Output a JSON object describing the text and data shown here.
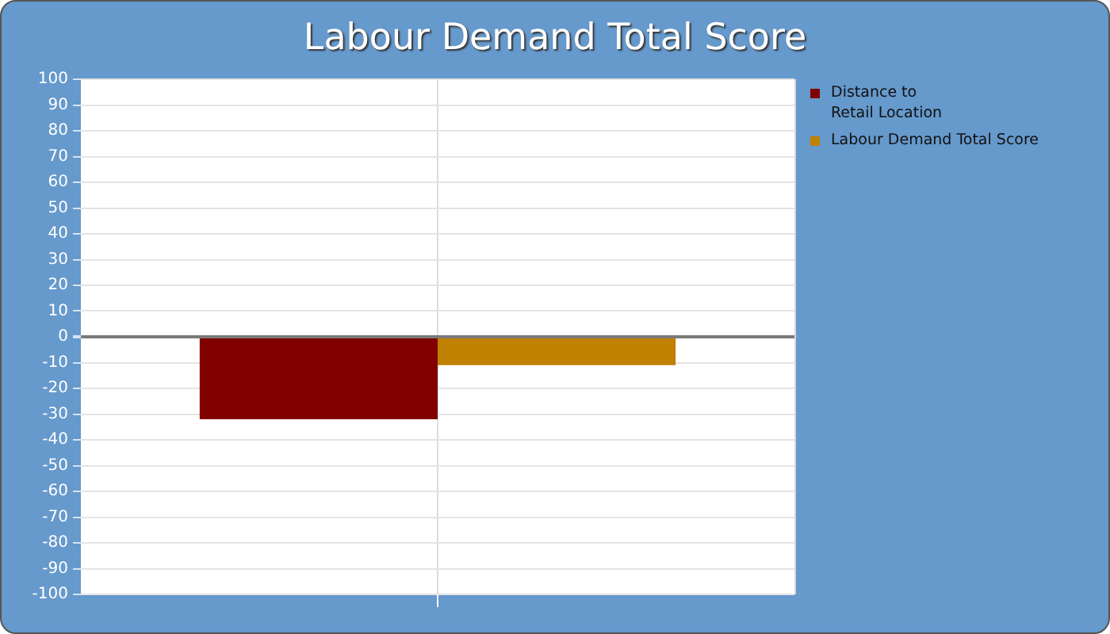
{
  "chart_data": {
    "type": "bar",
    "title": "Labour Demand Total Score",
    "categories": [
      null
    ],
    "series": [
      {
        "name": "Distance to\nRetail Location",
        "color": "#800000",
        "values": [
          -32
        ]
      },
      {
        "name": "Labour Demand Total Score",
        "color": "#c08000",
        "values": [
          -11
        ]
      }
    ],
    "ylim": [
      -100,
      100
    ],
    "yticks": [
      -100,
      -90,
      -80,
      -70,
      -60,
      -50,
      -40,
      -30,
      -20,
      -10,
      0,
      10,
      20,
      30,
      40,
      50,
      60,
      70,
      80,
      90,
      100
    ],
    "grid": true,
    "legend": "top right"
  }
}
